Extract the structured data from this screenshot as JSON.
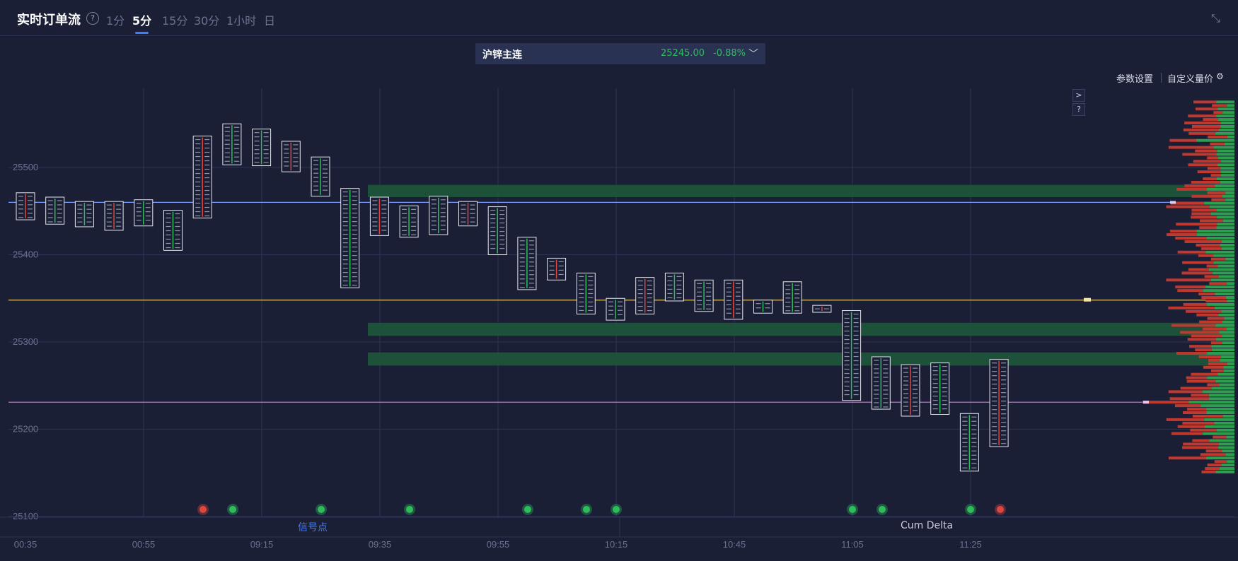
{
  "header": {
    "title": "实时订单流",
    "help": "?",
    "timeframes": [
      "1分",
      "5分",
      "15分",
      "30分",
      "1小时",
      "日"
    ],
    "active_timeframe": "5分"
  },
  "symbol": {
    "name": "沪锌主连",
    "price": "25245.00",
    "change": "-0.88%"
  },
  "toolbar": {
    "params": "参数设置",
    "custom_volume_price": "自定义量价"
  },
  "side_buttons": {
    "expand": ">",
    "help": "?"
  },
  "bottom_tabs": {
    "signal": "信号点",
    "cum_delta": "Cum Delta"
  },
  "colors": {
    "background": "#1b1f36",
    "up": "#2fbd5c",
    "down": "#e0463e",
    "accent": "#3d7bff",
    "poc": "#e8c36a",
    "vwap": "#d46bd8",
    "ref": "#7b9cff"
  },
  "chart_data": {
    "type": "footprint",
    "y_ticks": [
      "25500",
      "25400",
      "25300",
      "25200",
      "25100"
    ],
    "ylim": [
      25100,
      25600
    ],
    "x_ticks": [
      "00:35",
      "00:55",
      "09:15",
      "09:35",
      "09:55",
      "10:15",
      "10:45",
      "11:05",
      "11:25"
    ],
    "candles": [
      {
        "h": 25471,
        "l": 25440
      },
      {
        "h": 25466,
        "l": 25435
      },
      {
        "h": 25461,
        "l": 25432
      },
      {
        "h": 25461,
        "l": 25428
      },
      {
        "h": 25463,
        "l": 25433
      },
      {
        "h": 25451,
        "l": 25405
      },
      {
        "h": 25536,
        "l": 25442
      },
      {
        "h": 25550,
        "l": 25503
      },
      {
        "h": 25544,
        "l": 25502
      },
      {
        "h": 25530,
        "l": 25495
      },
      {
        "h": 25512,
        "l": 25467
      },
      {
        "h": 25476,
        "l": 25362
      },
      {
        "h": 25466,
        "l": 25422
      },
      {
        "h": 25456,
        "l": 25420
      },
      {
        "h": 25467,
        "l": 25423
      },
      {
        "h": 25461,
        "l": 25433
      },
      {
        "h": 25455,
        "l": 25400
      },
      {
        "h": 25420,
        "l": 25360
      },
      {
        "h": 25396,
        "l": 25371
      },
      {
        "h": 25379,
        "l": 25332
      },
      {
        "h": 25350,
        "l": 25325
      },
      {
        "h": 25374,
        "l": 25332
      },
      {
        "h": 25379,
        "l": 25347
      },
      {
        "h": 25371,
        "l": 25335
      },
      {
        "h": 25371,
        "l": 25326
      },
      {
        "h": 25348,
        "l": 25333
      },
      {
        "h": 25369,
        "l": 25333
      },
      {
        "h": 25342,
        "l": 25334
      },
      {
        "h": 25336,
        "l": 25233
      },
      {
        "h": 25283,
        "l": 25223
      },
      {
        "h": 25274,
        "l": 25215
      },
      {
        "h": 25276,
        "l": 25217
      },
      {
        "h": 25218,
        "l": 25152
      },
      {
        "h": 25280,
        "l": 25180
      }
    ],
    "reference_lines": [
      {
        "name": "ref",
        "y": 25460
      },
      {
        "name": "poc",
        "y": 25348
      },
      {
        "name": "vwap",
        "y": 25231
      }
    ],
    "signals": [
      {
        "x": "09:05",
        "type": "sell"
      },
      {
        "x": "09:10",
        "type": "buy"
      },
      {
        "x": "09:20",
        "type": "buy"
      },
      {
        "x": "09:40",
        "type": "buy"
      },
      {
        "x": "10:00",
        "type": "buy"
      },
      {
        "x": "10:10",
        "type": "buy"
      },
      {
        "x": "10:15",
        "type": "buy"
      },
      {
        "x": "11:05",
        "type": "buy"
      },
      {
        "x": "11:10",
        "type": "buy"
      },
      {
        "x": "11:25",
        "type": "buy"
      },
      {
        "x": "11:30",
        "type": "sell"
      }
    ]
  }
}
